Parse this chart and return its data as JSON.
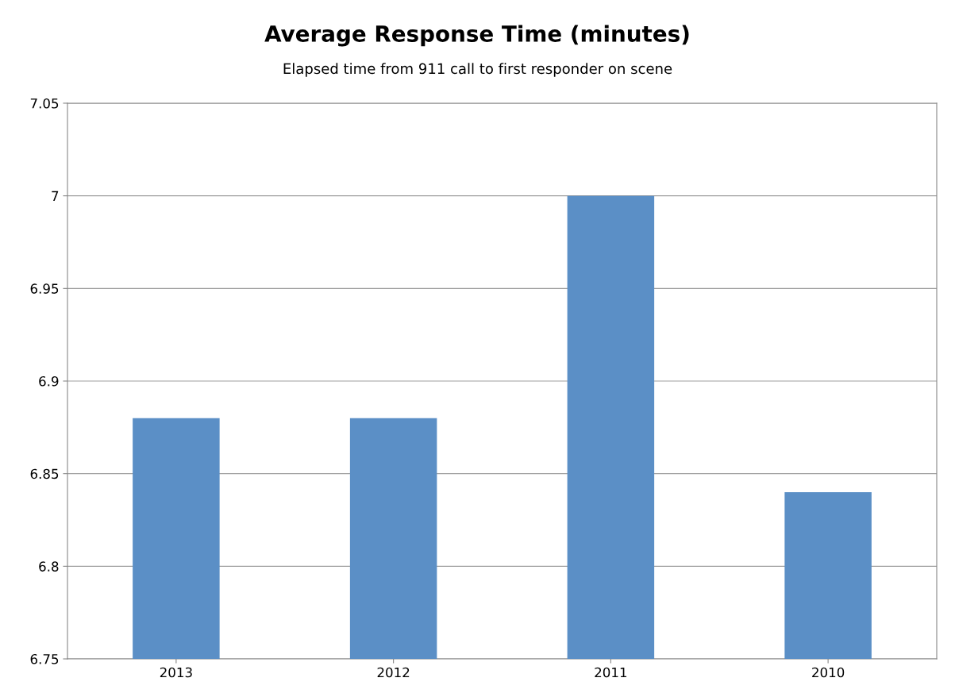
{
  "chart_data": {
    "type": "bar",
    "title": "Average Response Time (minutes)",
    "subtitle": "Elapsed time from 911 call to first responder on scene",
    "categories": [
      "2013",
      "2012",
      "2011",
      "2010"
    ],
    "values": [
      6.88,
      6.88,
      7.0,
      6.84
    ],
    "color": "#5b8fc6",
    "ylim": [
      6.75,
      7.05
    ],
    "yticks": [
      6.75,
      6.8,
      6.85,
      6.9,
      6.95,
      7,
      7.05
    ],
    "grid": "y"
  }
}
